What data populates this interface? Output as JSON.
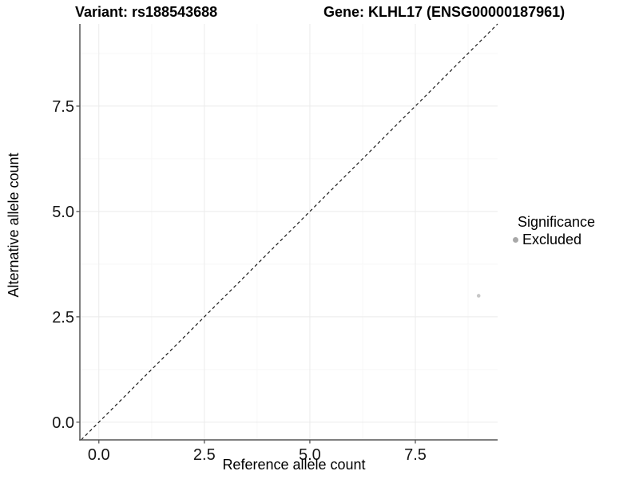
{
  "header": {
    "variant_title": "Variant: rs188543688",
    "gene_title": "Gene: KLHL17 (ENSG00000187961)"
  },
  "legend": {
    "title": "Significance",
    "items": [
      {
        "label": "Excluded",
        "marker_color": "#a8a8a8"
      }
    ]
  },
  "colors": {
    "background": "#ffffff",
    "grid_major": "#ebebeb",
    "grid_minor": "#f7f7f7",
    "axis_line": "#555555",
    "tick_mark": "#555555",
    "tick_text": "#151515",
    "identity_line": "#1a1a1a"
  },
  "chart_data": {
    "type": "scatter",
    "title": "Variant: rs188543688 | Gene: KLHL17 (ENSG00000187961)",
    "xlabel": "Reference allele count",
    "ylabel": "Alternative allele count",
    "xlim": [
      -0.45,
      9.45
    ],
    "ylim": [
      -0.42,
      9.45
    ],
    "x_ticks": [
      0,
      2.5,
      5,
      7.5
    ],
    "x_tick_labels": [
      "0.0",
      "2.5",
      "5.0",
      "7.5"
    ],
    "y_ticks": [
      0,
      2.5,
      5,
      7.5
    ],
    "y_tick_labels": [
      "0.0",
      "2.5",
      "5.0",
      "7.5"
    ],
    "x_minor_ticks": [
      1.25,
      3.75,
      6.25,
      8.75
    ],
    "y_minor_ticks": [
      1.25,
      3.75,
      6.25,
      8.75
    ],
    "grid": true,
    "legend_position": "right",
    "series": [
      {
        "name": "Excluded",
        "color": "#c7c7c7",
        "marker_radius": 2.3,
        "points": [
          {
            "x": 9,
            "y": 3
          }
        ]
      }
    ],
    "reference_line": {
      "equation": "y = x",
      "style": "dashed",
      "color": "#1a1a1a"
    }
  }
}
